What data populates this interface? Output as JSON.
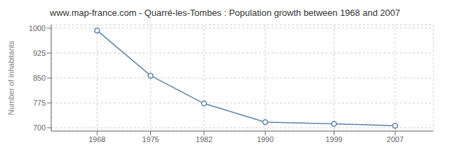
{
  "chart_data": {
    "type": "line",
    "title": "www.map-france.com - Quarré-les-Tombes : Population growth between 1968 and 2007",
    "ylabel": "Number of inhabitants",
    "x": [
      1968,
      1975,
      1982,
      1990,
      1999,
      2007
    ],
    "values": [
      993,
      857,
      773,
      717,
      712,
      706
    ],
    "color": "#5b82a6",
    "marker": "circle",
    "xlim": [
      1962,
      2012
    ],
    "xticks": [
      1968,
      1975,
      1982,
      1990,
      1999,
      2007
    ],
    "ylim": [
      690,
      1010
    ],
    "yticks": [
      700,
      775,
      850,
      925,
      1000
    ],
    "grid": true
  }
}
